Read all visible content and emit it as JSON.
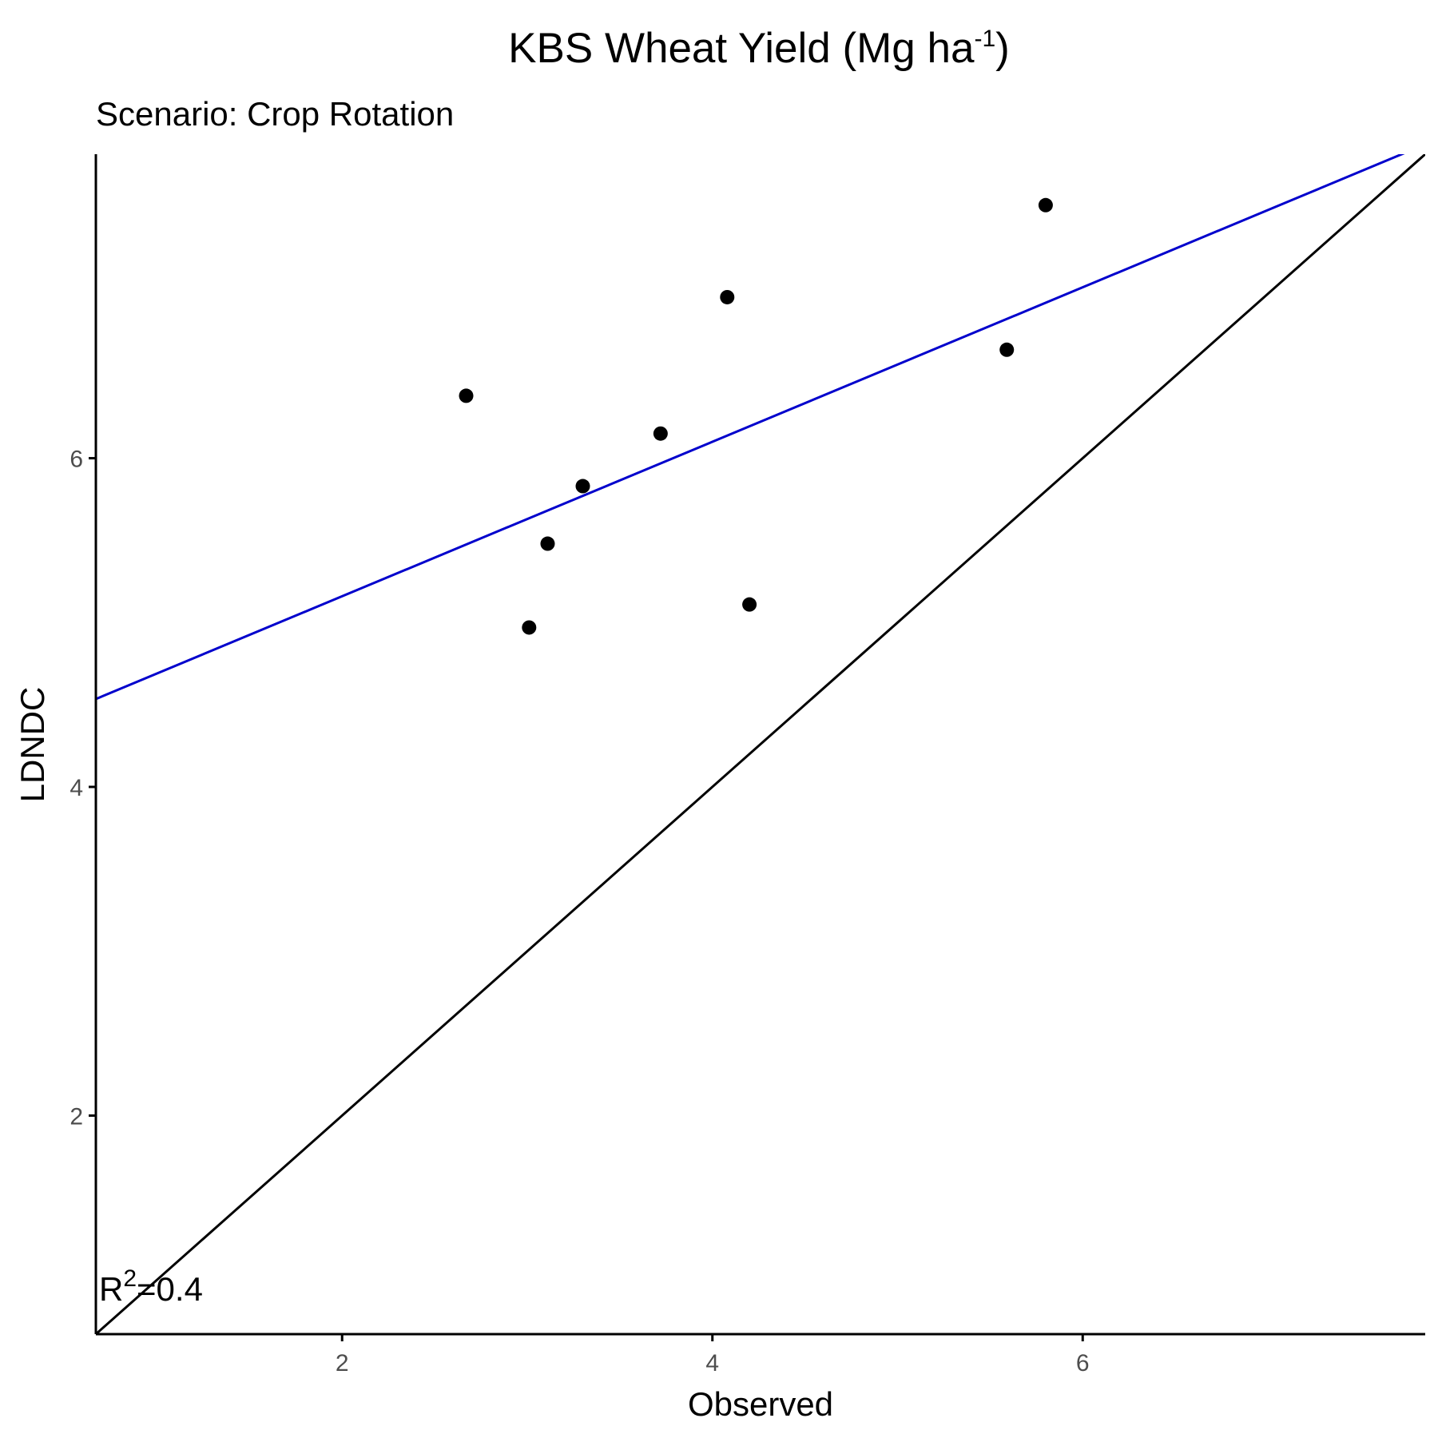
{
  "chart_data": {
    "type": "scatter",
    "title": {
      "main": "KBS Wheat Yield (Mg ha",
      "superscript": "-1",
      "close": ")"
    },
    "subtitle": "Scenario: Crop Rotation",
    "xlabel": "Observed",
    "ylabel": "LDNDC",
    "xlim": [
      0.67,
      7.85
    ],
    "ylim": [
      0.67,
      7.85
    ],
    "x_ticks": [
      2,
      4,
      6
    ],
    "y_ticks": [
      2,
      4,
      6
    ],
    "x_tick_labels": [
      "2",
      "4",
      "6"
    ],
    "y_tick_labels": [
      "2",
      "4",
      "6"
    ],
    "grid": false,
    "points": {
      "x": [
        2.67,
        3.01,
        3.11,
        3.3,
        3.72,
        4.08,
        4.2,
        5.59,
        5.8
      ],
      "y": [
        6.38,
        4.97,
        5.48,
        5.83,
        6.15,
        6.98,
        5.11,
        6.66,
        7.54
      ]
    },
    "fit_line": {
      "intercept": 4.22,
      "slope": 0.47,
      "color": "#0000cc"
    },
    "identity_line": {
      "intercept": 0,
      "slope": 1,
      "color": "#000000"
    },
    "annotation": {
      "base": "R",
      "superscript": "2",
      "rest": "=0.4"
    },
    "colors": {
      "points": "#000000",
      "fit": "#0000cc",
      "identity": "#000000",
      "axes": "#000000"
    }
  }
}
